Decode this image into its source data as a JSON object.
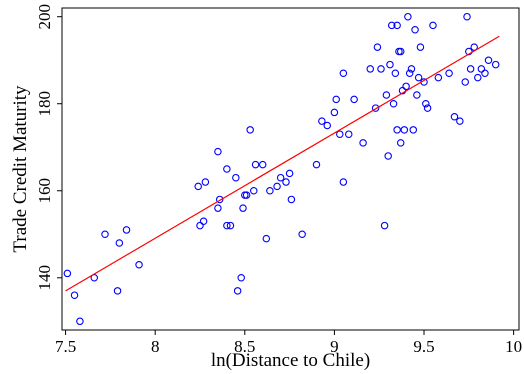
{
  "chart_data": {
    "type": "scatter",
    "title": "",
    "xlabel": "ln(Distance to Chile)",
    "ylabel": "Trade Credit Maturity",
    "xlim": [
      7.48,
      10.03
    ],
    "ylim": [
      128,
      202
    ],
    "xticks": [
      7.5,
      8,
      8.5,
      9,
      9.5,
      10
    ],
    "xtick_labels": [
      "7.5",
      "8",
      "8.5",
      "9",
      "9.5",
      "10"
    ],
    "yticks": [
      140,
      160,
      180,
      200
    ],
    "ytick_labels": [
      "140",
      "160",
      "180",
      "200"
    ],
    "grid": false,
    "legend": "none",
    "colors": {
      "points": "#0000ff",
      "fit_line": "#ff0000",
      "axes": "#000000"
    },
    "fit_line": {
      "x": [
        7.5,
        9.92
      ],
      "y": [
        137.0,
        195.5
      ]
    },
    "points": [
      {
        "x": 7.51,
        "y": 141
      },
      {
        "x": 7.55,
        "y": 136
      },
      {
        "x": 7.58,
        "y": 130
      },
      {
        "x": 7.66,
        "y": 140
      },
      {
        "x": 7.72,
        "y": 150
      },
      {
        "x": 7.79,
        "y": 137
      },
      {
        "x": 7.8,
        "y": 148
      },
      {
        "x": 7.84,
        "y": 151
      },
      {
        "x": 7.91,
        "y": 143
      },
      {
        "x": 8.24,
        "y": 161
      },
      {
        "x": 8.25,
        "y": 152
      },
      {
        "x": 8.27,
        "y": 153
      },
      {
        "x": 8.28,
        "y": 162
      },
      {
        "x": 8.35,
        "y": 169
      },
      {
        "x": 8.35,
        "y": 156
      },
      {
        "x": 8.36,
        "y": 158
      },
      {
        "x": 8.4,
        "y": 165
      },
      {
        "x": 8.4,
        "y": 152
      },
      {
        "x": 8.42,
        "y": 152
      },
      {
        "x": 8.45,
        "y": 163
      },
      {
        "x": 8.46,
        "y": 137
      },
      {
        "x": 8.48,
        "y": 140
      },
      {
        "x": 8.49,
        "y": 156
      },
      {
        "x": 8.5,
        "y": 159
      },
      {
        "x": 8.51,
        "y": 159
      },
      {
        "x": 8.53,
        "y": 174
      },
      {
        "x": 8.55,
        "y": 160
      },
      {
        "x": 8.56,
        "y": 166
      },
      {
        "x": 8.6,
        "y": 166
      },
      {
        "x": 8.62,
        "y": 149
      },
      {
        "x": 8.64,
        "y": 160
      },
      {
        "x": 8.68,
        "y": 161
      },
      {
        "x": 8.7,
        "y": 163
      },
      {
        "x": 8.73,
        "y": 162
      },
      {
        "x": 8.75,
        "y": 164
      },
      {
        "x": 8.76,
        "y": 158
      },
      {
        "x": 8.82,
        "y": 150
      },
      {
        "x": 8.9,
        "y": 166
      },
      {
        "x": 8.93,
        "y": 176
      },
      {
        "x": 8.96,
        "y": 175
      },
      {
        "x": 9.0,
        "y": 178
      },
      {
        "x": 9.01,
        "y": 181
      },
      {
        "x": 9.03,
        "y": 173
      },
      {
        "x": 9.05,
        "y": 187
      },
      {
        "x": 9.05,
        "y": 162
      },
      {
        "x": 9.08,
        "y": 173
      },
      {
        "x": 9.11,
        "y": 181
      },
      {
        "x": 9.16,
        "y": 171
      },
      {
        "x": 9.2,
        "y": 188
      },
      {
        "x": 9.23,
        "y": 179
      },
      {
        "x": 9.24,
        "y": 193
      },
      {
        "x": 9.26,
        "y": 188
      },
      {
        "x": 9.28,
        "y": 152
      },
      {
        "x": 9.29,
        "y": 182
      },
      {
        "x": 9.3,
        "y": 168
      },
      {
        "x": 9.31,
        "y": 189
      },
      {
        "x": 9.32,
        "y": 198
      },
      {
        "x": 9.33,
        "y": 180
      },
      {
        "x": 9.34,
        "y": 187
      },
      {
        "x": 9.35,
        "y": 174
      },
      {
        "x": 9.35,
        "y": 198
      },
      {
        "x": 9.36,
        "y": 192
      },
      {
        "x": 9.37,
        "y": 192
      },
      {
        "x": 9.37,
        "y": 171
      },
      {
        "x": 9.38,
        "y": 183
      },
      {
        "x": 9.39,
        "y": 174
      },
      {
        "x": 9.4,
        "y": 184
      },
      {
        "x": 9.41,
        "y": 200
      },
      {
        "x": 9.42,
        "y": 187
      },
      {
        "x": 9.43,
        "y": 188
      },
      {
        "x": 9.44,
        "y": 174
      },
      {
        "x": 9.45,
        "y": 197
      },
      {
        "x": 9.46,
        "y": 182
      },
      {
        "x": 9.47,
        "y": 186
      },
      {
        "x": 9.48,
        "y": 193
      },
      {
        "x": 9.5,
        "y": 185
      },
      {
        "x": 9.51,
        "y": 180
      },
      {
        "x": 9.52,
        "y": 179
      },
      {
        "x": 9.55,
        "y": 198
      },
      {
        "x": 9.58,
        "y": 186
      },
      {
        "x": 9.64,
        "y": 187
      },
      {
        "x": 9.67,
        "y": 177
      },
      {
        "x": 9.7,
        "y": 176
      },
      {
        "x": 9.73,
        "y": 185
      },
      {
        "x": 9.74,
        "y": 200
      },
      {
        "x": 9.75,
        "y": 192
      },
      {
        "x": 9.76,
        "y": 188
      },
      {
        "x": 9.78,
        "y": 193
      },
      {
        "x": 9.8,
        "y": 186
      },
      {
        "x": 9.82,
        "y": 188
      },
      {
        "x": 9.84,
        "y": 187
      },
      {
        "x": 9.86,
        "y": 190
      },
      {
        "x": 9.9,
        "y": 189
      }
    ]
  }
}
